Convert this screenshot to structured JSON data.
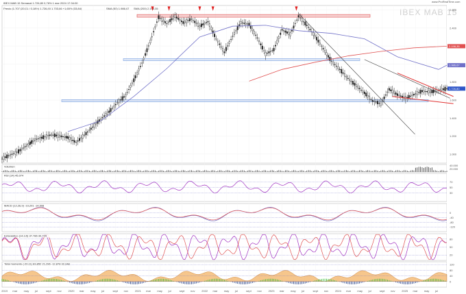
{
  "chart_data": {
    "type": "line",
    "header": "IBEX MAB 15 Semanal 1.726,80  0,76% 1 mar 2024 17:34:00",
    "ohlc_line": "Precio (1.707 (20,01 / 0,18%) 1.726,80  1.703,86  +1,65%  (33,84)",
    "ma_labels": [
      "SMA (50) 1.986,67",
      "SMA (200) 2.198,35"
    ],
    "watermark": "IBEX MAB 15",
    "brand": "www.ProRealTime.com",
    "x_ticks": [
      "2019",
      "mar",
      "may",
      "jul",
      "sept",
      "nov",
      "2020",
      "mar",
      "may",
      "jul",
      "sept",
      "nov",
      "2021",
      "mar",
      "may",
      "jul",
      "sept",
      "nov",
      "2022",
      "mar",
      "may",
      "jul",
      "sept",
      "nov",
      "2023",
      "mar",
      "may",
      "jul",
      "sept",
      "nov",
      "2024",
      "mar",
      "may",
      "jul",
      "sept",
      "nov",
      "2025",
      "mar",
      "may",
      "jul"
    ],
    "panels": [
      {
        "name": "price",
        "ylim": [
          900,
          2650
        ],
        "ticks": [
          1000,
          1200,
          1400,
          1600,
          1800,
          2000,
          2200,
          2400,
          2600
        ],
        "tick_labels": [
          "1.000",
          "1.200",
          "1.400",
          "1.600",
          "1.800",
          "2.000",
          "2.200",
          "2.400",
          "2.600"
        ],
        "tags": [
          {
            "text": "2.198,35",
            "value": 2198,
            "color": "#e05050"
          },
          {
            "text": "1.986,67",
            "value": 1987,
            "color": "#7070c8"
          },
          {
            "text": "1.726,80",
            "value": 1727,
            "color": "#2e55c8"
          }
        ]
      },
      {
        "name": "volume",
        "label": "Volumen",
        "ticks_text": [
          "40.000",
          "20.000"
        ],
        "ylim": [
          0,
          40000
        ]
      },
      {
        "name": "rsi",
        "label": "RSI (14) 45,074",
        "ylim": [
          0,
          100
        ],
        "ticks": [
          70,
          50,
          30
        ],
        "tag": "45,074"
      },
      {
        "name": "macd",
        "label": "MACD (12,26,9) -19,201 -14,508",
        "ylim": [
          -160,
          80
        ],
        "ticks": [
          0,
          -40,
          -80,
          -120
        ],
        "tick_labels": [
          "0",
          "-40",
          "-80",
          "-120"
        ],
        "tag": "-14,508"
      },
      {
        "name": "stoch",
        "label": "Estocástico (14,3,5) 37,786 30,729",
        "ylim": [
          0,
          100
        ],
        "ticks": [
          80,
          50,
          20
        ],
        "tags": [
          "37,786",
          "30,729"
        ]
      },
      {
        "name": "histogram",
        "label": "Total momento (-20,11) 83,852 21,296 -12,878 32,248",
        "ylim": [
          -40,
          140
        ],
        "ticks": [
          120,
          80,
          40,
          0
        ],
        "tick_labels": [
          "120",
          "80",
          "40",
          "0"
        ]
      }
    ],
    "price_series": {
      "name": "IBEX MAB 15",
      "x": [
        0,
        10,
        20,
        30,
        40,
        45,
        50,
        55,
        60,
        65,
        70,
        75,
        80,
        85,
        90,
        95,
        100,
        105,
        110,
        115,
        120,
        125,
        130,
        135,
        140,
        145,
        150,
        155,
        160,
        165,
        170,
        175,
        180,
        185,
        190,
        195,
        200,
        205,
        210,
        215,
        220,
        225,
        230,
        235,
        240,
        245,
        250,
        255,
        260,
        265,
        270
      ],
      "y": [
        950,
        1030,
        1160,
        1215,
        1185,
        1130,
        1210,
        1300,
        1390,
        1470,
        1570,
        1650,
        1820,
        2010,
        2250,
        2520,
        2450,
        2530,
        2460,
        2500,
        2420,
        2470,
        2280,
        2130,
        2310,
        2460,
        2440,
        2290,
        2110,
        2160,
        2380,
        2330,
        2530,
        2430,
        2310,
        2170,
        2030,
        1940,
        1840,
        1760,
        1680,
        1590,
        1560,
        1720,
        1660,
        1620,
        1660,
        1700,
        1690,
        1710,
        1727
      ]
    },
    "sma50": {
      "name": "SMA (50)",
      "x": [
        40,
        60,
        80,
        100,
        120,
        140,
        160,
        180,
        200,
        220,
        240,
        265,
        270
      ],
      "y": [
        1250,
        1370,
        1640,
        1950,
        2300,
        2420,
        2430,
        2370,
        2340,
        2280,
        2080,
        1940,
        1987
      ]
    },
    "sma200": {
      "name": "SMA (200)",
      "x": [
        150,
        170,
        190,
        210,
        230,
        250,
        270
      ],
      "y": [
        1810,
        1940,
        2020,
        2090,
        2140,
        2180,
        2198
      ]
    },
    "zones": [
      {
        "name": "resistance",
        "y0": 2520,
        "y1": 2550,
        "color": "#e05050"
      },
      {
        "name": "support-mid",
        "y0": 2040,
        "y1": 2060,
        "color": "#7aa0e0"
      },
      {
        "name": "support-low",
        "y0": 1580,
        "y1": 1605,
        "color": "#7aa0e0"
      }
    ],
    "markers": [
      "top-1",
      "top-2",
      "top-3",
      "top-4",
      "top-5"
    ]
  }
}
